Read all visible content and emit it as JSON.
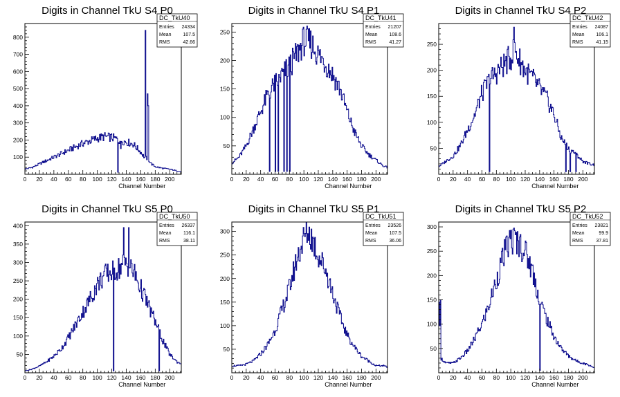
{
  "chart_data": [
    {
      "type": "histogram",
      "title": "Digits in Channel TkU S4 P0",
      "xlabel": "Channel Number",
      "ylabel": "",
      "xlim": [
        0,
        216
      ],
      "ylim": [
        0,
        880
      ],
      "xticks": [
        0,
        20,
        40,
        60,
        80,
        100,
        120,
        140,
        160,
        180,
        200
      ],
      "yticks": [
        100,
        200,
        300,
        400,
        500,
        600,
        700,
        800
      ],
      "stats": {
        "name": "DC_TkU40",
        "entries": "24334",
        "mean": "107.5",
        "rms": "42.66"
      },
      "profile": [
        [
          0,
          30
        ],
        [
          10,
          40
        ],
        [
          20,
          60
        ],
        [
          30,
          80
        ],
        [
          40,
          100
        ],
        [
          50,
          120
        ],
        [
          60,
          140
        ],
        [
          70,
          160
        ],
        [
          80,
          180
        ],
        [
          90,
          195
        ],
        [
          100,
          210
        ],
        [
          110,
          220
        ],
        [
          120,
          215
        ],
        [
          130,
          200
        ],
        [
          140,
          190
        ],
        [
          150,
          175
        ],
        [
          160,
          130
        ],
        [
          165,
          100
        ],
        [
          170,
          90
        ],
        [
          175,
          60
        ],
        [
          180,
          45
        ],
        [
          190,
          35
        ],
        [
          200,
          30
        ],
        [
          210,
          20
        ],
        [
          216,
          15
        ]
      ],
      "spikes": [
        [
          166,
          840
        ],
        [
          169,
          470
        ],
        [
          170,
          400
        ],
        [
          128,
          12
        ],
        [
          132,
          150
        ]
      ]
    },
    {
      "type": "histogram",
      "title": "Digits in Channel TkU S4 P1",
      "xlabel": "Channel Number",
      "ylabel": "",
      "xlim": [
        0,
        216
      ],
      "ylim": [
        0,
        265
      ],
      "xticks": [
        0,
        20,
        40,
        60,
        80,
        100,
        120,
        140,
        160,
        180,
        200
      ],
      "yticks": [
        50,
        100,
        150,
        200,
        250
      ],
      "stats": {
        "name": "DC_TkU41",
        "entries": "21207",
        "mean": "108.6",
        "rms": "41.27"
      },
      "profile": [
        [
          0,
          20
        ],
        [
          10,
          30
        ],
        [
          20,
          50
        ],
        [
          30,
          80
        ],
        [
          40,
          110
        ],
        [
          50,
          140
        ],
        [
          60,
          160
        ],
        [
          70,
          175
        ],
        [
          80,
          190
        ],
        [
          90,
          210
        ],
        [
          100,
          235
        ],
        [
          110,
          230
        ],
        [
          120,
          210
        ],
        [
          130,
          195
        ],
        [
          140,
          175
        ],
        [
          150,
          150
        ],
        [
          160,
          110
        ],
        [
          170,
          75
        ],
        [
          180,
          50
        ],
        [
          190,
          35
        ],
        [
          200,
          25
        ],
        [
          210,
          15
        ],
        [
          216,
          12
        ]
      ],
      "spikes": [
        [
          52,
          5
        ],
        [
          60,
          5
        ],
        [
          64,
          5
        ],
        [
          72,
          5
        ],
        [
          76,
          5
        ],
        [
          80,
          5
        ]
      ]
    },
    {
      "type": "histogram",
      "title": "Digits in Channel TkU S4 P2",
      "xlabel": "Channel Number",
      "ylabel": "",
      "xlim": [
        0,
        216
      ],
      "ylim": [
        0,
        290
      ],
      "xticks": [
        0,
        20,
        40,
        60,
        80,
        100,
        120,
        140,
        160,
        180,
        200
      ],
      "yticks": [
        50,
        100,
        150,
        200,
        250
      ],
      "stats": {
        "name": "DC_TkU42",
        "entries": "24087",
        "mean": "106.1",
        "rms": "41.15"
      },
      "profile": [
        [
          0,
          15
        ],
        [
          10,
          25
        ],
        [
          20,
          35
        ],
        [
          30,
          55
        ],
        [
          40,
          85
        ],
        [
          50,
          115
        ],
        [
          60,
          155
        ],
        [
          70,
          180
        ],
        [
          80,
          195
        ],
        [
          90,
          210
        ],
        [
          100,
          225
        ],
        [
          105,
          240
        ],
        [
          110,
          225
        ],
        [
          120,
          200
        ],
        [
          130,
          185
        ],
        [
          140,
          165
        ],
        [
          150,
          145
        ],
        [
          160,
          115
        ],
        [
          170,
          70
        ],
        [
          180,
          50
        ],
        [
          190,
          40
        ],
        [
          200,
          25
        ],
        [
          210,
          20
        ],
        [
          216,
          18
        ]
      ],
      "spikes": [
        [
          70,
          5
        ],
        [
          104,
          283
        ],
        [
          176,
          5
        ],
        [
          182,
          5
        ],
        [
          190,
          5
        ]
      ]
    },
    {
      "type": "histogram",
      "title": "Digits in Channel TkU S5 P0",
      "xlabel": "Channel Number",
      "ylabel": "",
      "xlim": [
        0,
        216
      ],
      "ylim": [
        0,
        410
      ],
      "xticks": [
        0,
        20,
        40,
        60,
        80,
        100,
        120,
        140,
        160,
        180,
        200
      ],
      "yticks": [
        50,
        100,
        150,
        200,
        250,
        300,
        350,
        400
      ],
      "stats": {
        "name": "DC_TkU50",
        "entries": "26337",
        "mean": "116.1",
        "rms": "38.11"
      },
      "profile": [
        [
          0,
          5
        ],
        [
          10,
          10
        ],
        [
          20,
          18
        ],
        [
          30,
          30
        ],
        [
          40,
          45
        ],
        [
          50,
          65
        ],
        [
          60,
          95
        ],
        [
          70,
          130
        ],
        [
          80,
          165
        ],
        [
          90,
          200
        ],
        [
          100,
          240
        ],
        [
          110,
          265
        ],
        [
          120,
          275
        ],
        [
          130,
          285
        ],
        [
          140,
          300
        ],
        [
          150,
          275
        ],
        [
          160,
          230
        ],
        [
          170,
          185
        ],
        [
          180,
          140
        ],
        [
          190,
          90
        ],
        [
          200,
          50
        ],
        [
          210,
          30
        ],
        [
          216,
          25
        ]
      ],
      "spikes": [
        [
          122,
          5
        ],
        [
          136,
          395
        ],
        [
          143,
          395
        ],
        [
          185,
          5
        ]
      ]
    },
    {
      "type": "histogram",
      "title": "Digits in Channel TkU S5 P1",
      "xlabel": "Channel Number",
      "ylabel": "",
      "xlim": [
        0,
        216
      ],
      "ylim": [
        0,
        320
      ],
      "xticks": [
        0,
        20,
        40,
        60,
        80,
        100,
        120,
        140,
        160,
        180,
        200
      ],
      "yticks": [
        50,
        100,
        150,
        200,
        250,
        300
      ],
      "stats": {
        "name": "DC_TkU51",
        "entries": "23526",
        "mean": "107.5",
        "rms": "36.06"
      },
      "profile": [
        [
          0,
          15
        ],
        [
          10,
          15
        ],
        [
          20,
          18
        ],
        [
          30,
          25
        ],
        [
          40,
          40
        ],
        [
          50,
          60
        ],
        [
          60,
          90
        ],
        [
          70,
          135
        ],
        [
          80,
          180
        ],
        [
          90,
          240
        ],
        [
          100,
          285
        ],
        [
          105,
          300
        ],
        [
          110,
          290
        ],
        [
          120,
          250
        ],
        [
          130,
          220
        ],
        [
          140,
          170
        ],
        [
          150,
          120
        ],
        [
          160,
          80
        ],
        [
          170,
          55
        ],
        [
          180,
          35
        ],
        [
          190,
          25
        ],
        [
          200,
          15
        ],
        [
          210,
          15
        ],
        [
          216,
          12
        ]
      ],
      "spikes": []
    },
    {
      "type": "histogram",
      "title": "Digits in Channel TkU S5 P2",
      "xlabel": "Channel Number",
      "ylabel": "",
      "xlim": [
        0,
        216
      ],
      "ylim": [
        0,
        310
      ],
      "xticks": [
        0,
        20,
        40,
        60,
        80,
        100,
        120,
        140,
        160,
        180,
        200
      ],
      "yticks": [
        50,
        100,
        150,
        200,
        250,
        300
      ],
      "stats": {
        "name": "DC_TkU52",
        "entries": "23821",
        "mean": "99.9",
        "rms": "37.81"
      },
      "profile": [
        [
          0,
          150
        ],
        [
          3,
          30
        ],
        [
          10,
          20
        ],
        [
          20,
          20
        ],
        [
          30,
          30
        ],
        [
          40,
          45
        ],
        [
          50,
          70
        ],
        [
          60,
          100
        ],
        [
          70,
          140
        ],
        [
          80,
          190
        ],
        [
          90,
          240
        ],
        [
          100,
          275
        ],
        [
          110,
          270
        ],
        [
          120,
          250
        ],
        [
          130,
          210
        ],
        [
          140,
          150
        ],
        [
          150,
          110
        ],
        [
          160,
          75
        ],
        [
          170,
          50
        ],
        [
          180,
          35
        ],
        [
          190,
          25
        ],
        [
          200,
          20
        ],
        [
          210,
          15
        ],
        [
          216,
          10
        ]
      ],
      "spikes": [
        [
          140,
          5
        ],
        [
          2,
          150
        ]
      ]
    }
  ]
}
